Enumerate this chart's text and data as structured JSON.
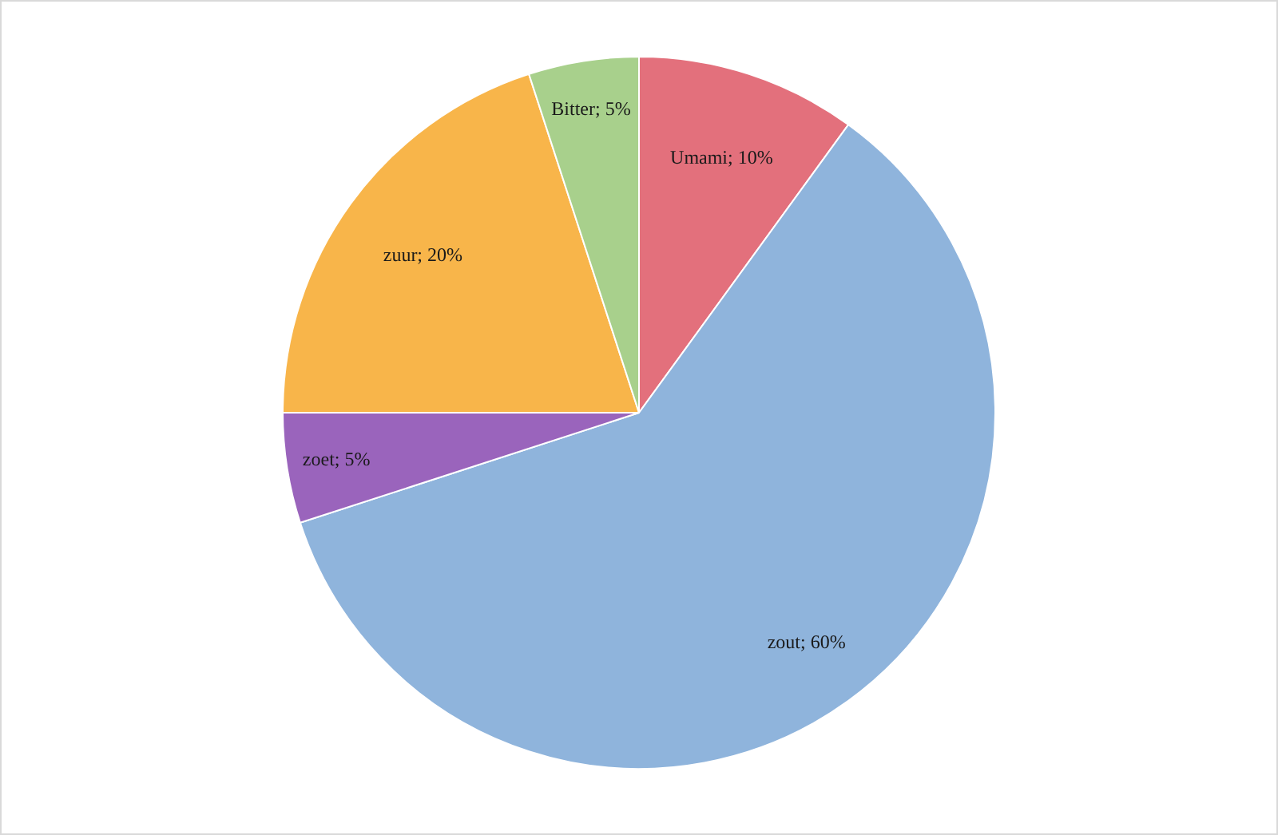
{
  "chart_data": {
    "type": "pie",
    "categories": [
      "Umami",
      "zout",
      "zoet",
      "zuur",
      "Bitter"
    ],
    "values": [
      10,
      60,
      5,
      20,
      5
    ],
    "colors": [
      "#e3707c",
      "#8fb4dc",
      "#9a64bc",
      "#f8b54a",
      "#a8d08c"
    ],
    "value_labels": [
      "10%",
      "60%",
      "5%",
      "20%",
      "5%"
    ],
    "legend": false
  }
}
